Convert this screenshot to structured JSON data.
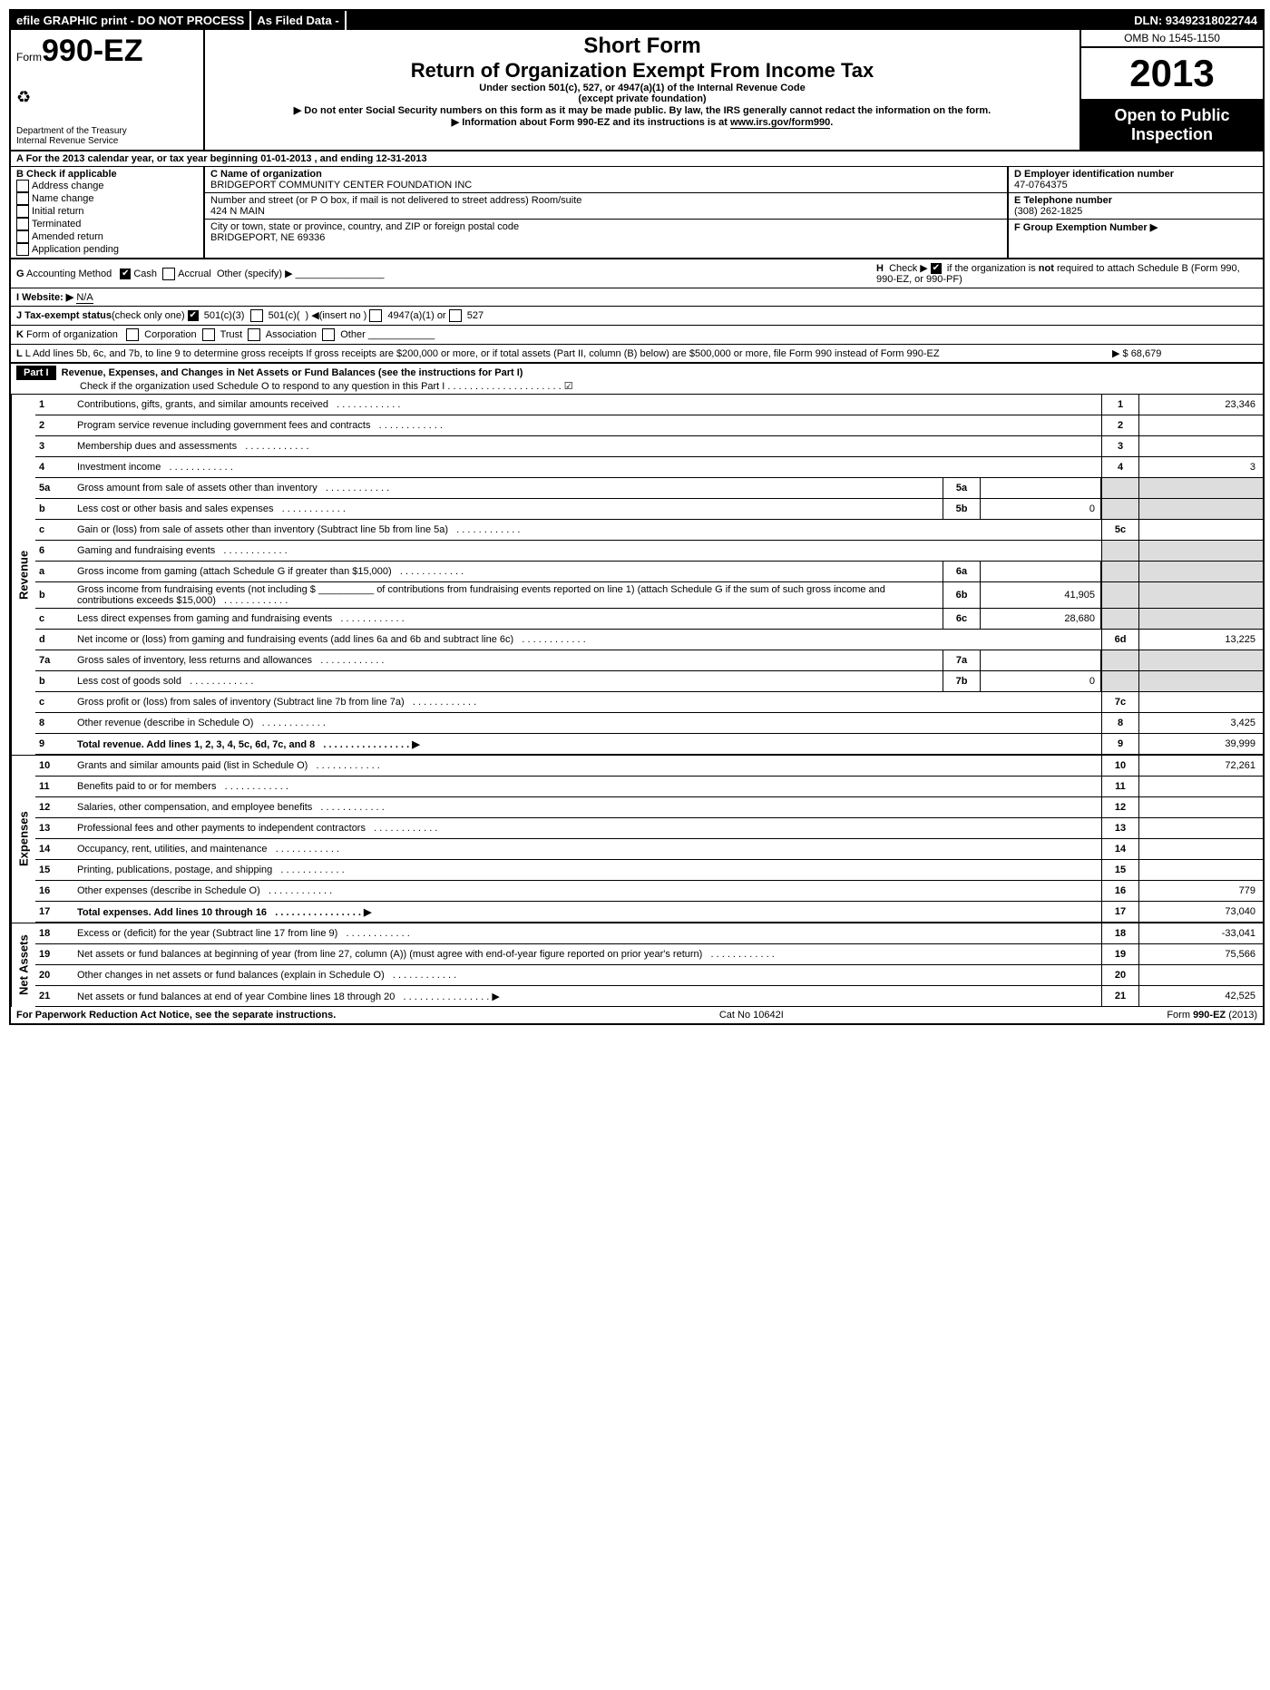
{
  "topBar": {
    "efile": "efile GRAPHIC print - DO NOT PROCESS",
    "asFiled": "As Filed Data -",
    "dln": "DLN: 93492318022744"
  },
  "header": {
    "formPrefix": "Form",
    "formNo": "990-EZ",
    "dept1": "Department of the Treasury",
    "dept2": "Internal Revenue Service",
    "short": "Short Form",
    "title": "Return of Organization Exempt From Income Tax",
    "sub1": "Under section 501(c), 527, or 4947(a)(1) of the Internal Revenue Code",
    "sub2": "(except private foundation)",
    "sub3": "▶ Do not enter Social Security numbers on this form as it may be made public. By law, the IRS generally cannot redact the information on the form.",
    "sub4": "▶ Information about Form 990-EZ and its instructions is at ",
    "sub4link": "www.irs.gov/form990",
    "omb": "OMB No 1545-1150",
    "year": "2013",
    "open": "Open to Public Inspection"
  },
  "rowA": "A  For the 2013 calendar year, or tax year beginning 01-01-2013           , and ending 12-31-2013",
  "secB": {
    "title": "B  Check if applicable",
    "opts": [
      "Address change",
      "Name change",
      "Initial return",
      "Terminated",
      "Amended return",
      "Application pending"
    ]
  },
  "secC": {
    "nameLbl": "C Name of organization",
    "name": "BRIDGEPORT COMMUNITY CENTER FOUNDATION INC",
    "streetLbl": "Number and street (or P O box, if mail is not delivered to street address) Room/suite",
    "street": "424 N MAIN",
    "cityLbl": "City or town, state or province, country, and ZIP or foreign postal code",
    "city": "BRIDGEPORT, NE  69336"
  },
  "secDEF": {
    "dLbl": "D Employer identification number",
    "d": "47-0764375",
    "eLbl": "E Telephone number",
    "e": "(308) 262-1825",
    "fLbl": "F Group Exemption Number    ▶"
  },
  "lineG": "G Accounting Method   ☑ Cash  ☐ Accrual  Other (specify) ▶ ____________",
  "lineH": "H  Check ▶ ☑ if the organization is not required to attach Schedule B (Form 990, 990-EZ, or 990-PF)",
  "lineI": "I Website: ▶",
  "lineIval": "N/A",
  "lineJ": "J Tax-exempt status(check only one) ☑ 501(c)(3)  ☐ 501(c)(  ) ◀(insert no ) ☐ 4947(a)(1) or ☐ 527",
  "lineK": "K Form of organization   ☐ Corporation  ☐ Trust  ☐ Association  ☐ Other ____________",
  "lineL": "L Add lines 5b, 6c, and 7b, to line 9 to determine gross receipts  If gross receipts are $200,000 or more, or if total assets (Part II, column (B) below) are $500,000 or more, file Form 990 instead of Form 990-EZ",
  "lineLval": "▶ $ 68,679",
  "partI": {
    "label": "Part I",
    "title": "Revenue, Expenses, and Changes in Net Assets or Fund Balances (see the instructions for Part I)",
    "check": "Check if the organization used Schedule O to respond to any question in this Part I . . . . . . . . . . . . . . . . . . . . . ☑"
  },
  "sections": {
    "revenue": "Revenue",
    "expenses": "Expenses",
    "netassets": "Net Assets"
  },
  "rows": [
    {
      "n": "1",
      "d": "Contributions, gifts, grants, and similar amounts received",
      "rn": "1",
      "rv": "23,346"
    },
    {
      "n": "2",
      "d": "Program service revenue including government fees and contracts",
      "rn": "2",
      "rv": ""
    },
    {
      "n": "3",
      "d": "Membership dues and assessments",
      "rn": "3",
      "rv": ""
    },
    {
      "n": "4",
      "d": "Investment income",
      "rn": "4",
      "rv": "3"
    },
    {
      "n": "5a",
      "d": "Gross amount from sale of assets other than inventory",
      "mn": "5a",
      "mv": "",
      "grey": true
    },
    {
      "n": "b",
      "d": "Less  cost or other basis and sales expenses",
      "mn": "5b",
      "mv": "0",
      "grey": true
    },
    {
      "n": "c",
      "d": "Gain or (loss) from sale of assets other than inventory (Subtract line 5b from line 5a)",
      "rn": "5c",
      "rv": ""
    },
    {
      "n": "6",
      "d": "Gaming and fundraising events",
      "grey": true,
      "noval": true
    },
    {
      "n": "a",
      "d": "Gross income from gaming (attach Schedule G if greater than $15,000)",
      "mn": "6a",
      "mv": "",
      "grey": true
    },
    {
      "n": "b",
      "d": "Gross income from fundraising events (not including $ __________ of contributions from fundraising events reported on line 1) (attach Schedule G if the sum of such gross income and contributions exceeds $15,000)",
      "mn": "6b",
      "mv": "41,905",
      "grey": true
    },
    {
      "n": "c",
      "d": "Less  direct expenses from gaming and fundraising events",
      "mn": "6c",
      "mv": "28,680",
      "grey": true
    },
    {
      "n": "d",
      "d": "Net income or (loss) from gaming and fundraising events (add lines 6a and 6b and subtract line 6c)",
      "rn": "6d",
      "rv": "13,225"
    },
    {
      "n": "7a",
      "d": "Gross sales of inventory, less returns and allowances",
      "mn": "7a",
      "mv": "",
      "grey": true
    },
    {
      "n": "b",
      "d": "Less  cost of goods sold",
      "mn": "7b",
      "mv": "0",
      "grey": true
    },
    {
      "n": "c",
      "d": "Gross profit or (loss) from sales of inventory (Subtract line 7b from line 7a)",
      "rn": "7c",
      "rv": ""
    },
    {
      "n": "8",
      "d": "Other revenue (describe in Schedule O)",
      "rn": "8",
      "rv": "3,425"
    },
    {
      "n": "9",
      "d": "Total revenue. Add lines 1, 2, 3, 4, 5c, 6d, 7c, and 8",
      "rn": "9",
      "rv": "39,999",
      "bold": true,
      "arrow": true
    }
  ],
  "expRows": [
    {
      "n": "10",
      "d": "Grants and similar amounts paid (list in Schedule O)",
      "rn": "10",
      "rv": "72,261"
    },
    {
      "n": "11",
      "d": "Benefits paid to or for members",
      "rn": "11",
      "rv": ""
    },
    {
      "n": "12",
      "d": "Salaries, other compensation, and employee benefits",
      "rn": "12",
      "rv": ""
    },
    {
      "n": "13",
      "d": "Professional fees and other payments to independent contractors",
      "rn": "13",
      "rv": ""
    },
    {
      "n": "14",
      "d": "Occupancy, rent, utilities, and maintenance",
      "rn": "14",
      "rv": ""
    },
    {
      "n": "15",
      "d": "Printing, publications, postage, and shipping",
      "rn": "15",
      "rv": ""
    },
    {
      "n": "16",
      "d": "Other expenses (describe in Schedule O)",
      "rn": "16",
      "rv": "779"
    },
    {
      "n": "17",
      "d": "Total expenses. Add lines 10 through 16",
      "rn": "17",
      "rv": "73,040",
      "bold": true,
      "arrow": true
    }
  ],
  "naRows": [
    {
      "n": "18",
      "d": "Excess or (deficit) for the year (Subtract line 17 from line 9)",
      "rn": "18",
      "rv": "-33,041"
    },
    {
      "n": "19",
      "d": "Net assets or fund balances at beginning of year (from line 27, column (A)) (must agree with end-of-year figure reported on prior year's return)",
      "rn": "19",
      "rv": "75,566"
    },
    {
      "n": "20",
      "d": "Other changes in net assets or fund balances (explain in Schedule O)",
      "rn": "20",
      "rv": ""
    },
    {
      "n": "21",
      "d": "Net assets or fund balances at end of year  Combine lines 18 through 20",
      "rn": "21",
      "rv": "42,525",
      "arrow": true
    }
  ],
  "footer": {
    "left": "For Paperwork Reduction Act Notice, see the separate instructions.",
    "mid": "Cat No 10642I",
    "right": "Form 990-EZ (2013)"
  }
}
